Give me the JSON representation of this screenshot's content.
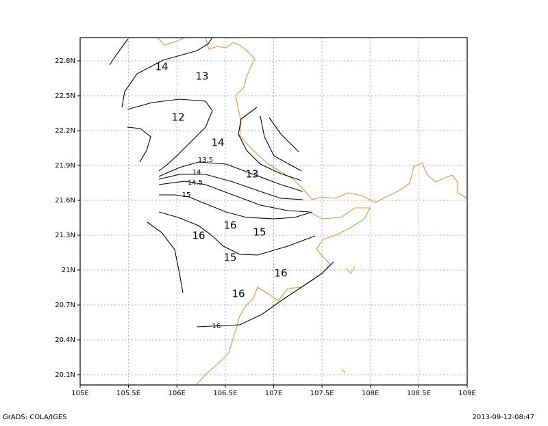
{
  "map": {
    "xticks": [
      "105E",
      "105.5E",
      "106E",
      "106.5E",
      "107E",
      "107.5E",
      "108E",
      "108.5E",
      "109E"
    ],
    "yticks": [
      "22.8N",
      "22.5N",
      "22.2N",
      "21.9N",
      "21.6N",
      "21.3N",
      "21N",
      "20.7N",
      "20.4N",
      "20.1N"
    ],
    "contour_labels": [
      "14",
      "13",
      "12",
      "14",
      "13.5",
      "13",
      "14",
      "14.5",
      "15",
      "16",
      "15",
      "16",
      "15",
      "16",
      "16",
      "16"
    ]
  },
  "footer": {
    "left": "GrADS: COLA/IGES",
    "right": "2013-09-12-08:47"
  }
}
